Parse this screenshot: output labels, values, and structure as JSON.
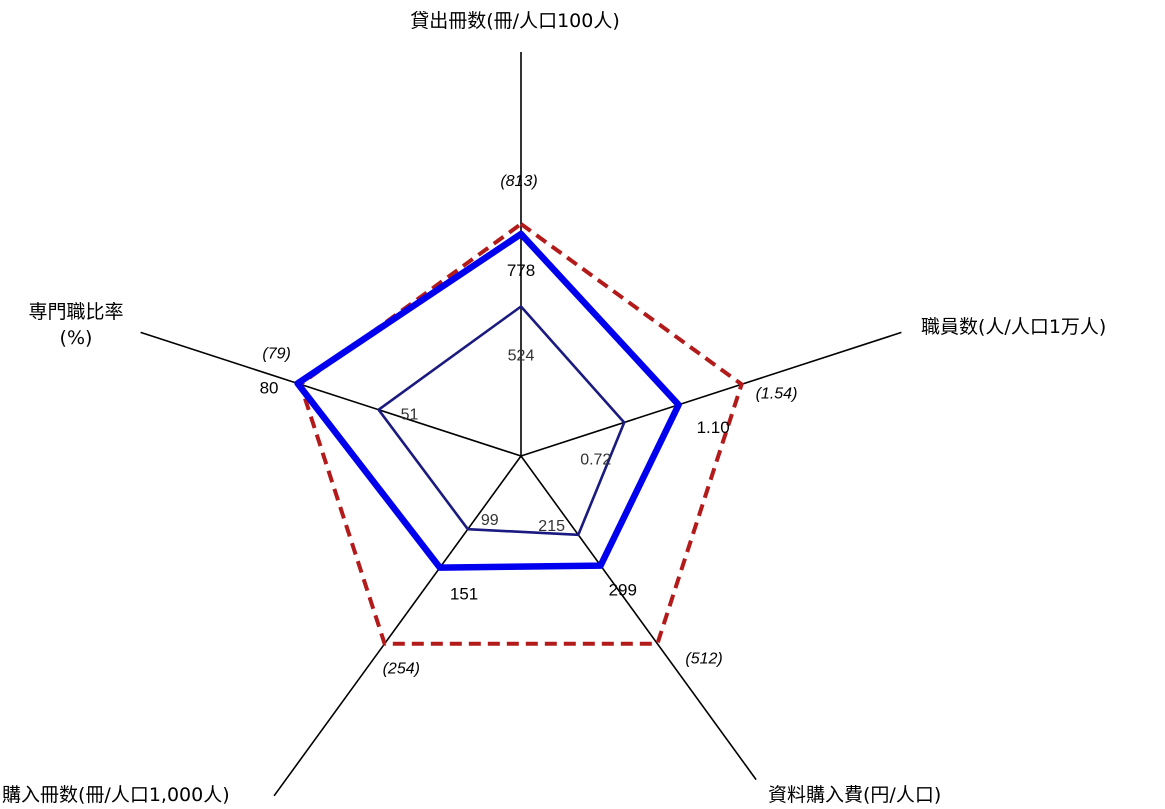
{
  "chart_data": {
    "type": "radar",
    "title": "",
    "axes": [
      {
        "label": "貸出冊数(冊/人口100人)",
        "max": 813
      },
      {
        "label": "職員数(人/人口1万人)",
        "max": 1.54
      },
      {
        "label": "資料購入費(円/人口)",
        "max": 512
      },
      {
        "label": "購入冊数(冊/人口1,000人)",
        "max": 254
      },
      {
        "label": "専門職比率\n(%)",
        "max": 79
      }
    ],
    "series": [
      {
        "values": [
          813,
          1.54,
          512,
          254,
          79
        ],
        "labels": [
          "(813)",
          "(1.54)",
          "(512)",
          "(254)",
          "(79)"
        ],
        "color": "#b31b1b",
        "style": "dashed"
      },
      {
        "values": [
          778,
          1.1,
          299,
          151,
          80
        ],
        "labels": [
          "778",
          "1.10",
          "299",
          "151",
          "80"
        ],
        "color": "#0000ee",
        "style": "solid-thick"
      },
      {
        "values": [
          524,
          0.72,
          215,
          99,
          51
        ],
        "labels": [
          "524",
          "0.72",
          "215",
          "99",
          "51"
        ],
        "color": "#1a1a80",
        "style": "solid-thin"
      }
    ]
  }
}
